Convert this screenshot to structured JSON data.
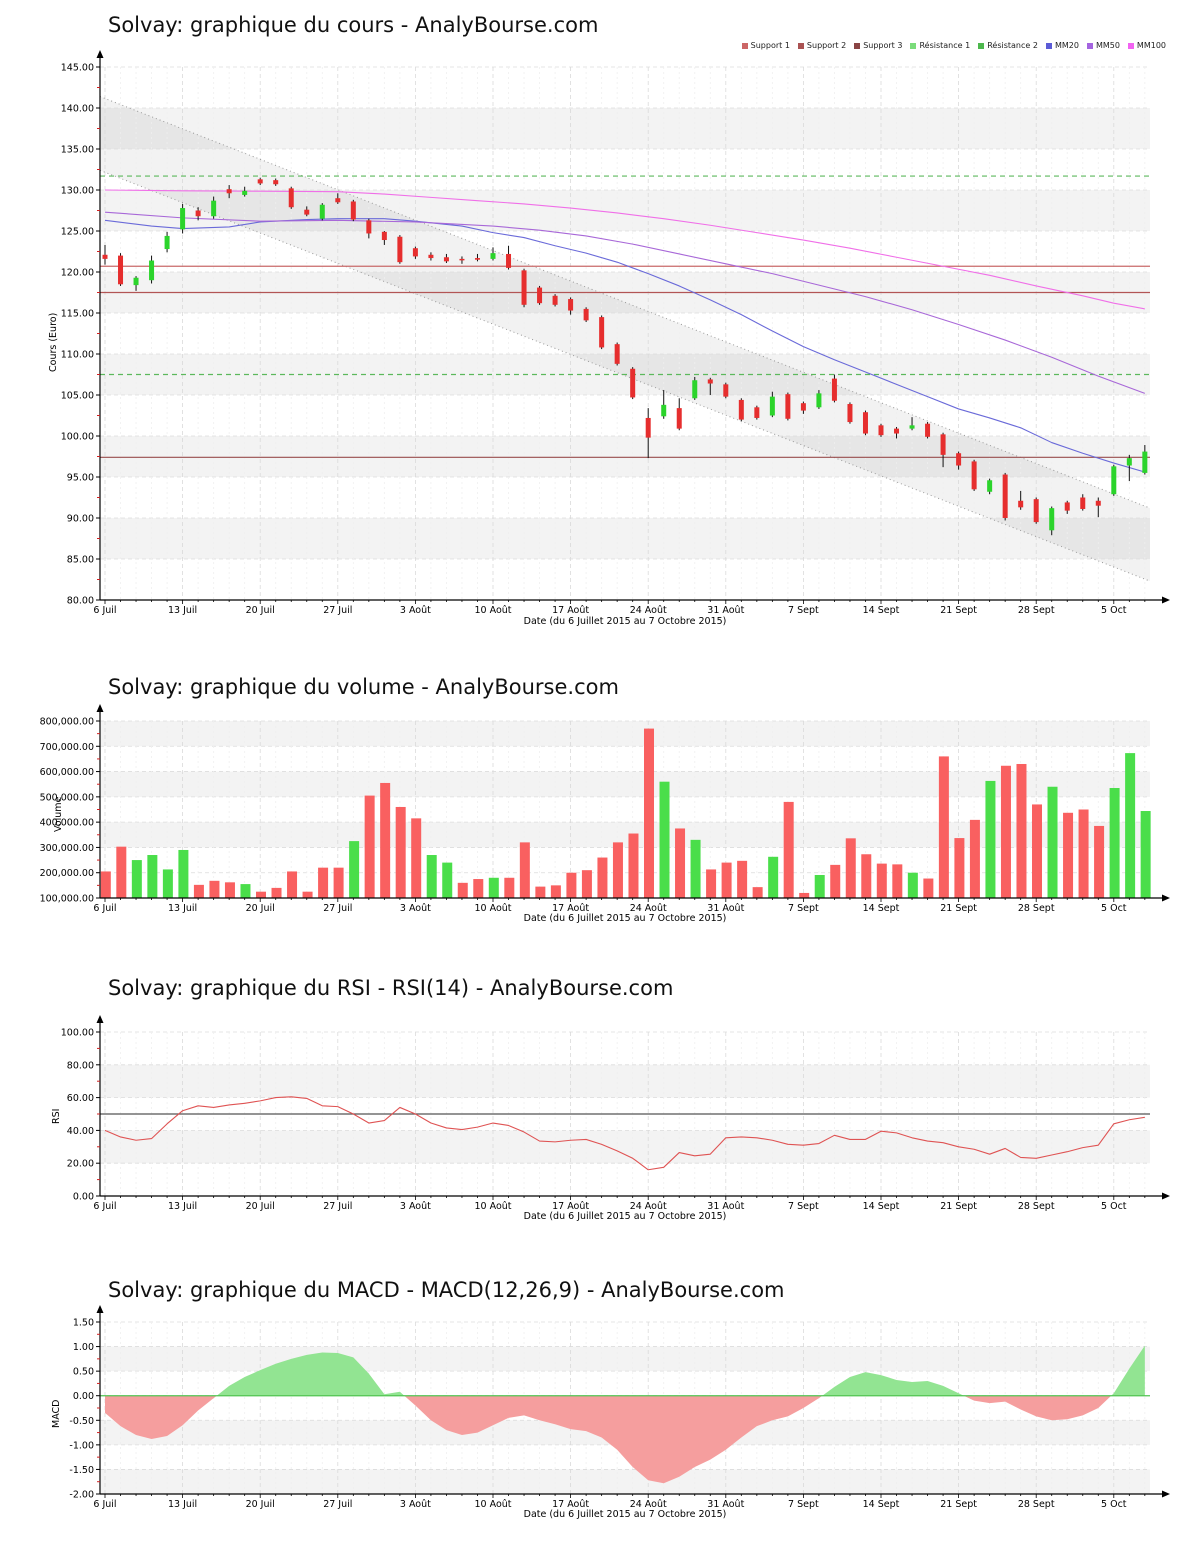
{
  "x_axis": {
    "title": "Date (du 6 Juillet 2015 au 7 Octobre 2015)",
    "week_labels": [
      "6 Juil",
      "13 Juil",
      "20 Juil",
      "27 Juil",
      "3 Août",
      "10 Août",
      "17 Août",
      "24 Août",
      "31 Août",
      "7 Sept",
      "14 Sept",
      "21 Sept",
      "28 Sept",
      "5 Oct"
    ],
    "days": 68
  },
  "chart_data": [
    {
      "type": "candlestick",
      "title": "Solvay: graphique du cours - AnalyBourse.com",
      "ylabel": "Cours (Euro)",
      "xlabel": "Date (du 6 Juillet 2015 au 7 Octobre 2015)",
      "ylim": [
        80,
        145
      ],
      "ytick_step": 5,
      "colors": {
        "up": "#2bd42b",
        "down": "#e62e2e",
        "wick": "#111111"
      },
      "legend": [
        {
          "label": "Support 1",
          "color": "#cc6666"
        },
        {
          "label": "Support 2",
          "color": "#aa5252"
        },
        {
          "label": "Support 3",
          "color": "#8a4444"
        },
        {
          "label": "Résistance 1",
          "color": "#7adc7a"
        },
        {
          "label": "Résistance 2",
          "color": "#4db84d"
        },
        {
          "label": "MM20",
          "color": "#5b5bd6"
        },
        {
          "label": "MM50",
          "color": "#a464e0"
        },
        {
          "label": "MM100",
          "color": "#f263f2"
        }
      ],
      "levels": [
        {
          "name": "Resistance 1",
          "value": 131.7,
          "color": "#5cb85c",
          "dash": true
        },
        {
          "name": "Resistance 2",
          "value": 107.5,
          "color": "#5cb85c",
          "dash": true
        },
        {
          "name": "Support 1",
          "value": 120.7,
          "color": "#c96a6a",
          "dash": false
        },
        {
          "name": "Support 2",
          "value": 117.5,
          "color": "#b25555",
          "dash": false
        },
        {
          "name": "Support 3",
          "value": 97.4,
          "color": "#994d4d",
          "dash": false
        }
      ],
      "channel": {
        "upper": [
          141.4,
          91.2
        ],
        "lower": [
          132.4,
          82.3
        ]
      },
      "moving_averages": [
        {
          "name": "MM20",
          "color": "#6a6ad9",
          "points": [
            [
              0,
              126.3
            ],
            [
              3,
              125.6
            ],
            [
              5,
              125.3
            ],
            [
              8,
              125.5
            ],
            [
              10,
              126.1
            ],
            [
              13,
              126.4
            ],
            [
              15,
              126.5
            ],
            [
              18,
              126.5
            ],
            [
              20,
              126.2
            ],
            [
              23,
              125.6
            ],
            [
              25,
              124.8
            ],
            [
              27,
              124.2
            ],
            [
              29,
              123.2
            ],
            [
              31,
              122.3
            ],
            [
              33,
              121.2
            ],
            [
              35,
              119.8
            ],
            [
              37,
              118.3
            ],
            [
              39,
              116.6
            ],
            [
              41,
              114.8
            ],
            [
              43,
              112.8
            ],
            [
              45,
              110.9
            ],
            [
              47,
              109.3
            ],
            [
              49,
              107.8
            ],
            [
              51,
              106.3
            ],
            [
              53,
              104.8
            ],
            [
              55,
              103.3
            ],
            [
              57,
              102.2
            ],
            [
              59,
              101.0
            ],
            [
              61,
              99.2
            ],
            [
              63,
              97.9
            ],
            [
              65,
              96.7
            ],
            [
              67,
              95.6
            ]
          ]
        },
        {
          "name": "MM50",
          "color": "#a868d8",
          "points": [
            [
              0,
              127.3
            ],
            [
              5,
              126.6
            ],
            [
              10,
              126.2
            ],
            [
              15,
              126.3
            ],
            [
              20,
              126.1
            ],
            [
              25,
              125.6
            ],
            [
              28,
              125.1
            ],
            [
              31,
              124.4
            ],
            [
              34,
              123.4
            ],
            [
              37,
              122.2
            ],
            [
              40,
              121.0
            ],
            [
              43,
              119.8
            ],
            [
              46,
              118.4
            ],
            [
              49,
              117.0
            ],
            [
              52,
              115.4
            ],
            [
              55,
              113.6
            ],
            [
              58,
              111.7
            ],
            [
              61,
              109.6
            ],
            [
              64,
              107.3
            ],
            [
              67,
              105.2
            ]
          ]
        },
        {
          "name": "MM100",
          "color": "#f06fe8",
          "points": [
            [
              0,
              130.0
            ],
            [
              5,
              129.9
            ],
            [
              10,
              129.85
            ],
            [
              15,
              129.8
            ],
            [
              18,
              129.5
            ],
            [
              21,
              129.1
            ],
            [
              24,
              128.7
            ],
            [
              27,
              128.3
            ],
            [
              30,
              127.8
            ],
            [
              33,
              127.2
            ],
            [
              36,
              126.5
            ],
            [
              39,
              125.7
            ],
            [
              42,
              124.8
            ],
            [
              45,
              123.9
            ],
            [
              48,
              122.9
            ],
            [
              51,
              121.8
            ],
            [
              54,
              120.7
            ],
            [
              57,
              119.6
            ],
            [
              60,
              118.3
            ],
            [
              63,
              117.1
            ],
            [
              65,
              116.2
            ],
            [
              67,
              115.5
            ]
          ]
        }
      ],
      "candles": [
        [
          122.1,
          123.3,
          120.9,
          121.6
        ],
        [
          122.0,
          122.3,
          118.3,
          118.5
        ],
        [
          118.4,
          119.5,
          117.7,
          119.3
        ],
        [
          119.0,
          122.0,
          118.6,
          121.4
        ],
        [
          122.8,
          124.9,
          122.4,
          124.4
        ],
        [
          125.2,
          128.3,
          124.7,
          127.8
        ],
        [
          127.5,
          127.9,
          126.3,
          126.8
        ],
        [
          126.8,
          129.2,
          126.5,
          128.7
        ],
        [
          130.1,
          130.6,
          129.0,
          129.6
        ],
        [
          129.4,
          130.4,
          129.2,
          129.9
        ],
        [
          131.3,
          131.5,
          130.6,
          130.8
        ],
        [
          131.2,
          131.4,
          130.5,
          130.7
        ],
        [
          130.2,
          130.4,
          127.7,
          127.9
        ],
        [
          127.6,
          128.0,
          126.8,
          127.0
        ],
        [
          126.5,
          128.4,
          126.3,
          128.2
        ],
        [
          129.0,
          129.6,
          128.3,
          128.5
        ],
        [
          128.6,
          128.8,
          126.2,
          126.4
        ],
        [
          126.3,
          126.5,
          124.1,
          124.7
        ],
        [
          124.9,
          125.0,
          123.3,
          123.9
        ],
        [
          124.3,
          124.5,
          121.0,
          121.2
        ],
        [
          122.9,
          123.1,
          121.6,
          121.9
        ],
        [
          122.1,
          122.4,
          121.4,
          121.7
        ],
        [
          121.8,
          122.2,
          121.1,
          121.3
        ],
        [
          121.6,
          121.9,
          121.0,
          121.5
        ],
        [
          121.7,
          122.2,
          121.3,
          121.5
        ],
        [
          121.6,
          123.0,
          121.4,
          122.3
        ],
        [
          122.2,
          123.2,
          120.3,
          120.5
        ],
        [
          120.2,
          120.4,
          115.7,
          116.0
        ],
        [
          118.1,
          118.3,
          116.0,
          116.2
        ],
        [
          117.1,
          117.3,
          115.8,
          116.0
        ],
        [
          116.7,
          116.9,
          114.8,
          115.3
        ],
        [
          115.5,
          115.7,
          113.9,
          114.1
        ],
        [
          114.5,
          114.7,
          110.6,
          110.8
        ],
        [
          111.2,
          111.4,
          108.6,
          108.8
        ],
        [
          108.2,
          108.4,
          104.5,
          104.7
        ],
        [
          102.2,
          103.4,
          97.3,
          99.8
        ],
        [
          102.4,
          105.6,
          102.1,
          103.8
        ],
        [
          103.4,
          104.6,
          100.7,
          100.9
        ],
        [
          104.6,
          107.2,
          104.4,
          106.8
        ],
        [
          106.9,
          107.1,
          105.0,
          106.4
        ],
        [
          106.3,
          106.5,
          104.6,
          104.8
        ],
        [
          104.4,
          104.6,
          101.8,
          102.0
        ],
        [
          103.5,
          103.7,
          102.0,
          102.2
        ],
        [
          102.5,
          105.4,
          102.3,
          104.8
        ],
        [
          105.1,
          105.3,
          101.9,
          102.1
        ],
        [
          104.0,
          104.2,
          102.7,
          103.1
        ],
        [
          103.5,
          105.6,
          103.3,
          105.2
        ],
        [
          107.0,
          107.5,
          104.1,
          104.3
        ],
        [
          103.9,
          104.1,
          101.5,
          101.7
        ],
        [
          102.9,
          103.1,
          100.1,
          100.3
        ],
        [
          101.3,
          101.5,
          99.9,
          100.1
        ],
        [
          100.9,
          101.1,
          99.7,
          100.3
        ],
        [
          100.9,
          102.3,
          100.7,
          101.3
        ],
        [
          101.5,
          101.7,
          99.7,
          99.9
        ],
        [
          100.2,
          100.4,
          96.2,
          97.7
        ],
        [
          97.9,
          98.1,
          95.9,
          96.4
        ],
        [
          96.9,
          97.1,
          93.3,
          93.5
        ],
        [
          93.2,
          94.8,
          92.9,
          94.6
        ],
        [
          95.3,
          95.5,
          89.7,
          90.0
        ],
        [
          92.1,
          93.3,
          91.0,
          91.3
        ],
        [
          92.3,
          92.5,
          89.3,
          89.5
        ],
        [
          88.5,
          91.4,
          87.9,
          91.2
        ],
        [
          91.9,
          92.1,
          90.5,
          90.9
        ],
        [
          92.5,
          92.9,
          90.9,
          91.1
        ],
        [
          92.1,
          92.5,
          90.1,
          91.5
        ],
        [
          92.9,
          96.5,
          92.7,
          96.3
        ],
        [
          96.4,
          97.7,
          94.5,
          97.3
        ],
        [
          95.5,
          98.9,
          95.3,
          98.1
        ]
      ]
    },
    {
      "type": "bar",
      "title": "Solvay: graphique du volume - AnalyBourse.com",
      "ylabel": "Volume",
      "xlabel": "Date (du 6 Juillet 2015 au 7 Octobre 2015)",
      "ylim": [
        100000,
        800000
      ],
      "ytick_step": 100000,
      "colors": {
        "up": "#4ade4a",
        "down": "#f96060"
      },
      "values": [
        205000,
        303000,
        250000,
        270000,
        213000,
        290000,
        152000,
        168000,
        162000,
        155000,
        125000,
        140000,
        205000,
        125000,
        220000,
        220000,
        325000,
        505000,
        555000,
        460000,
        415000,
        270000,
        240000,
        160000,
        175000,
        180000,
        180000,
        320000,
        145000,
        150000,
        200000,
        210000,
        260000,
        320000,
        355000,
        770000,
        560000,
        375000,
        330000,
        213000,
        240000,
        247000,
        143000,
        263000,
        480000,
        120000,
        191000,
        231000,
        336000,
        273000,
        236000,
        233000,
        200000,
        177000,
        660000,
        337000,
        409000,
        563000,
        623000,
        630000,
        470000,
        540000,
        437000,
        450000,
        385000,
        535000,
        673000,
        444000
      ],
      "directions": [
        "d",
        "d",
        "u",
        "u",
        "u",
        "u",
        "d",
        "d",
        "d",
        "u",
        "d",
        "d",
        "d",
        "d",
        "d",
        "d",
        "u",
        "d",
        "d",
        "d",
        "d",
        "u",
        "u",
        "d",
        "d",
        "u",
        "d",
        "d",
        "d",
        "d",
        "d",
        "d",
        "d",
        "d",
        "d",
        "d",
        "u",
        "d",
        "u",
        "d",
        "d",
        "d",
        "d",
        "u",
        "d",
        "d",
        "u",
        "d",
        "d",
        "d",
        "d",
        "d",
        "u",
        "d",
        "d",
        "d",
        "d",
        "u",
        "d",
        "d",
        "d",
        "u",
        "d",
        "d",
        "d",
        "u",
        "u",
        "u"
      ]
    },
    {
      "type": "line",
      "title": "Solvay: graphique du RSI - RSI(14) - AnalyBourse.com",
      "ylabel": "RSI",
      "xlabel": "Date (du 6 Juillet 2015 au 7 Octobre 2015)",
      "ylim": [
        0,
        100
      ],
      "ytick_step": 20,
      "midline": 50,
      "colors": {
        "line": "#df5353",
        "midline": "#555555"
      },
      "values": [
        40,
        36,
        34,
        35,
        44,
        52,
        55,
        54,
        55.5,
        56.5,
        58,
        60,
        60.5,
        59.5,
        55,
        54.5,
        50,
        44.5,
        46,
        54,
        50,
        44.5,
        41.5,
        40.5,
        42,
        44.5,
        43,
        39,
        33.5,
        33,
        34,
        34.5,
        31.5,
        27.5,
        23,
        16,
        17.5,
        26.5,
        24.5,
        25.5,
        35.5,
        36,
        35.5,
        34,
        31.5,
        31,
        32,
        37,
        34.5,
        34.5,
        39.5,
        38.5,
        35.5,
        33.5,
        32.5,
        30,
        28.5,
        25.5,
        29,
        23.5,
        23,
        25,
        27,
        29.5,
        31,
        44,
        46.5,
        48
      ]
    },
    {
      "type": "area",
      "title": "Solvay: graphique du MACD - MACD(12,26,9) - AnalyBourse.com",
      "ylabel": "MACD",
      "xlabel": "Date (du 6 Juillet 2015 au 7 Octobre 2015)",
      "ylim": [
        -2.0,
        1.5
      ],
      "ytick_step": 0.5,
      "colors": {
        "pos": "#92e492",
        "neg": "#f59e9e",
        "zeroline": "#52c452"
      },
      "values": [
        -0.35,
        -0.62,
        -0.8,
        -0.88,
        -0.82,
        -0.6,
        -0.3,
        -0.05,
        0.2,
        0.38,
        0.52,
        0.65,
        0.75,
        0.83,
        0.88,
        0.87,
        0.78,
        0.45,
        0.03,
        0.08,
        -0.2,
        -0.5,
        -0.7,
        -0.8,
        -0.75,
        -0.6,
        -0.45,
        -0.4,
        -0.5,
        -0.58,
        -0.68,
        -0.72,
        -0.85,
        -1.1,
        -1.45,
        -1.72,
        -1.78,
        -1.65,
        -1.45,
        -1.3,
        -1.1,
        -0.85,
        -0.62,
        -0.5,
        -0.42,
        -0.25,
        -0.05,
        0.18,
        0.38,
        0.48,
        0.42,
        0.32,
        0.28,
        0.3,
        0.2,
        0.05,
        -0.1,
        -0.15,
        -0.12,
        -0.28,
        -0.42,
        -0.5,
        -0.48,
        -0.4,
        -0.25,
        0.05,
        0.55,
        1.02
      ]
    }
  ]
}
